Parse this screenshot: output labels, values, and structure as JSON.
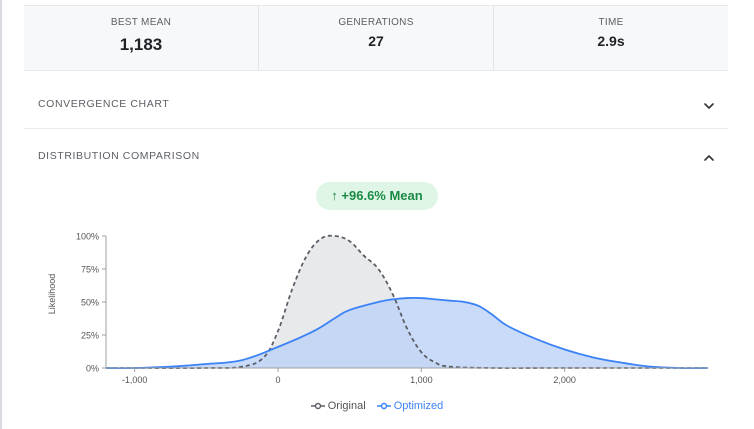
{
  "stats": [
    {
      "label": "BEST MEAN",
      "value": "1,183"
    },
    {
      "label": "GENERATIONS",
      "value": "27"
    },
    {
      "label": "TIME",
      "value": "2.9s"
    }
  ],
  "sections": {
    "convergence": {
      "label": "CONVERGENCE CHART",
      "icon": "chevron-down-icon"
    },
    "distribution": {
      "label": "DISTRIBUTION COMPARISON",
      "icon": "chevron-up-icon"
    }
  },
  "badge": {
    "text": "↑ +96.6% Mean"
  },
  "colors": {
    "original_stroke": "#5c5f66",
    "original_fill": "#e8e9eb",
    "optimized_stroke": "#3b82f6",
    "optimized_fill": "#bcd2f7",
    "overlap_fill": "#a9bfe8",
    "badge_bg": "#dff6e6",
    "badge_text": "#1b8a45"
  },
  "chart_data": {
    "type": "area",
    "ylabel": "Likelihood",
    "xlabel": "",
    "xlim": [
      -1200,
      3000
    ],
    "ylim": [
      0,
      1
    ],
    "x_ticks": [
      {
        "value": -1000,
        "label": "-1,000"
      },
      {
        "value": 0,
        "label": "0"
      },
      {
        "value": 1000,
        "label": "1,000"
      },
      {
        "value": 2000,
        "label": "2,000"
      }
    ],
    "y_ticks": [
      {
        "value": 0,
        "label": "0%"
      },
      {
        "value": 0.25,
        "label": "25%"
      },
      {
        "value": 0.5,
        "label": "50%"
      },
      {
        "value": 0.75,
        "label": "75%"
      },
      {
        "value": 1,
        "label": "100%"
      }
    ],
    "series": [
      {
        "name": "Original",
        "style": "dashed",
        "x": [
          -1200,
          -1000,
          -500,
          -250,
          -100,
          0,
          100,
          200,
          300,
          400,
          500,
          600,
          700,
          800,
          900,
          1000,
          1100,
          1200,
          1500,
          2000,
          3000
        ],
        "y": [
          0,
          0,
          0.0,
          0.01,
          0.08,
          0.28,
          0.6,
          0.85,
          0.98,
          1.0,
          0.96,
          0.85,
          0.75,
          0.56,
          0.3,
          0.12,
          0.04,
          0.01,
          0,
          0,
          0
        ]
      },
      {
        "name": "Optimized",
        "style": "solid",
        "x": [
          -1200,
          -1000,
          -750,
          -500,
          -250,
          0,
          250,
          400,
          500,
          700,
          800,
          900,
          1000,
          1100,
          1200,
          1300,
          1400,
          1500,
          1600,
          1800,
          2000,
          2200,
          2400,
          2600,
          2800,
          3000
        ],
        "y": [
          0,
          0.0,
          0.01,
          0.03,
          0.06,
          0.16,
          0.28,
          0.38,
          0.44,
          0.5,
          0.52,
          0.53,
          0.53,
          0.52,
          0.51,
          0.5,
          0.47,
          0.4,
          0.32,
          0.22,
          0.14,
          0.08,
          0.04,
          0.01,
          0.0,
          0
        ]
      }
    ],
    "legend": "bottom-center",
    "grid": false
  }
}
